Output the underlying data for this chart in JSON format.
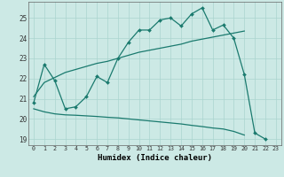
{
  "title": "",
  "xlabel": "Humidex (Indice chaleur)",
  "ylabel": "",
  "bg_color": "#cce9e5",
  "line_color": "#1a7a6e",
  "xlim": [
    -0.5,
    23.5
  ],
  "ylim": [
    18.7,
    25.8
  ],
  "xticks": [
    0,
    1,
    2,
    3,
    4,
    5,
    6,
    7,
    8,
    9,
    10,
    11,
    12,
    13,
    14,
    15,
    16,
    17,
    18,
    19,
    20,
    21,
    22,
    23
  ],
  "yticks": [
    19,
    20,
    21,
    22,
    23,
    24,
    25
  ],
  "line1_x": [
    0,
    1,
    2,
    3,
    4,
    5,
    6,
    7,
    8,
    9,
    10,
    11,
    12,
    13,
    14,
    15,
    16,
    17,
    18,
    19,
    20,
    21,
    22
  ],
  "line1_y": [
    20.8,
    22.7,
    21.9,
    20.5,
    20.6,
    21.1,
    22.1,
    21.8,
    23.0,
    23.8,
    24.4,
    24.4,
    24.9,
    25.0,
    24.6,
    25.2,
    25.5,
    24.4,
    24.65,
    24.0,
    22.2,
    19.3,
    19.0
  ],
  "line2_x": [
    0,
    1,
    2,
    3,
    4,
    5,
    6,
    7,
    8,
    9,
    10,
    11,
    12,
    13,
    14,
    15,
    16,
    17,
    18,
    19,
    20
  ],
  "line2_y": [
    21.1,
    21.8,
    22.05,
    22.3,
    22.45,
    22.6,
    22.75,
    22.85,
    23.0,
    23.15,
    23.3,
    23.4,
    23.5,
    23.6,
    23.7,
    23.85,
    23.95,
    24.05,
    24.15,
    24.25,
    24.35
  ],
  "line3_x": [
    0,
    1,
    2,
    3,
    4,
    5,
    6,
    7,
    8,
    9,
    10,
    11,
    12,
    13,
    14,
    15,
    16,
    17,
    18,
    19,
    20
  ],
  "line3_y": [
    20.5,
    20.35,
    20.25,
    20.2,
    20.18,
    20.15,
    20.12,
    20.08,
    20.05,
    20.0,
    19.95,
    19.9,
    19.85,
    19.8,
    19.75,
    19.68,
    19.62,
    19.55,
    19.5,
    19.38,
    19.2
  ],
  "grid_color": "#aad4cf",
  "marker": "D",
  "marker_size": 2.0,
  "lw": 0.9
}
